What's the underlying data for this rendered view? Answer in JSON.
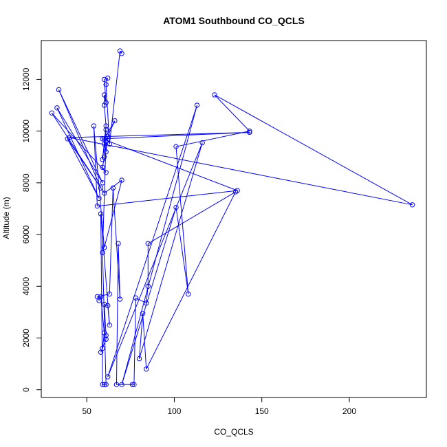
{
  "chart_data": {
    "type": "line",
    "title": "ATOM1 Southbound CO_QCLS",
    "xlabel": "CO_QCLS",
    "ylabel": "Altitude (m)",
    "xlim": [
      24,
      244
    ],
    "ylim": [
      -300,
      13500
    ],
    "xticks": [
      50,
      100,
      150,
      200
    ],
    "yticks": [
      0,
      2000,
      4000,
      6000,
      8000,
      10000,
      12000
    ],
    "grid": false,
    "legend": "none",
    "series_color": "#0000ff",
    "marker": "open-circle",
    "series": [
      {
        "values": [
          [
            70,
            13000
          ],
          [
            69,
            13100
          ],
          [
            63,
            9500
          ],
          [
            61,
            11800
          ],
          [
            62,
            12050
          ],
          [
            60,
            12000
          ],
          [
            61,
            11100
          ],
          [
            60,
            11400
          ],
          [
            60,
            11000
          ],
          [
            61,
            10200
          ],
          [
            59,
            8900
          ],
          [
            60,
            9500
          ],
          [
            61,
            9200
          ],
          [
            62,
            9800
          ],
          [
            66,
            10400
          ],
          [
            60,
            9700
          ],
          [
            61,
            10050
          ],
          [
            60,
            9000
          ],
          [
            59,
            8600
          ],
          [
            61,
            8400
          ],
          [
            30,
            10700
          ],
          [
            58,
            7800
          ],
          [
            34,
            11600
          ],
          [
            59,
            8000
          ],
          [
            33,
            10900
          ],
          [
            57,
            7400
          ],
          [
            39,
            9700
          ],
          [
            60,
            7600
          ],
          [
            70,
            8100
          ],
          [
            60,
            5500
          ],
          [
            54,
            10200
          ],
          [
            56,
            7100
          ],
          [
            136,
            7700
          ],
          [
            59,
            9700
          ],
          [
            143,
            9950
          ],
          [
            40,
            9750
          ],
          [
            236,
            7150
          ],
          [
            123,
            11400
          ],
          [
            143,
            10000
          ],
          [
            101,
            9400
          ],
          [
            108,
            3700
          ],
          [
            101,
            7050
          ],
          [
            70,
            200
          ],
          [
            113,
            11000
          ],
          [
            62,
            500
          ],
          [
            116,
            9550
          ],
          [
            80,
            1200
          ],
          [
            82,
            2950
          ],
          [
            84,
            800
          ],
          [
            135,
            7650
          ],
          [
            85,
            5650
          ],
          [
            85,
            4000
          ],
          [
            84,
            3350
          ],
          [
            78,
            3550
          ],
          [
            77,
            200
          ],
          [
            76,
            200
          ],
          [
            67,
            200
          ],
          [
            68,
            5650
          ],
          [
            69,
            3500
          ],
          [
            65,
            7800
          ],
          [
            63,
            3700
          ],
          [
            56,
            3600
          ],
          [
            57,
            3450
          ],
          [
            58,
            3600
          ],
          [
            60,
            2200
          ],
          [
            59,
            1600
          ],
          [
            58,
            1450
          ],
          [
            61,
            1950
          ],
          [
            61,
            2100
          ],
          [
            60,
            3300
          ],
          [
            62,
            3250
          ],
          [
            63,
            2500
          ],
          [
            58,
            6800
          ],
          [
            59,
            200
          ],
          [
            60,
            200
          ],
          [
            61,
            200
          ],
          [
            59,
            5300
          ],
          [
            61,
            9600
          ]
        ]
      }
    ]
  }
}
